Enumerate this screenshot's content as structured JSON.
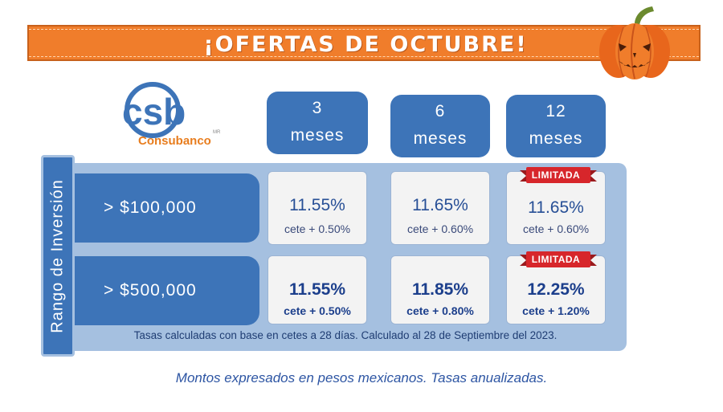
{
  "banner": {
    "title": "¡OFERTAS DE OCTUBRE!"
  },
  "logo": {
    "mark": "csb",
    "name": "Consubanco",
    "mr": "MR"
  },
  "terms": [
    {
      "num": "3",
      "unit": "meses"
    },
    {
      "num": "6",
      "unit": "meses"
    },
    {
      "num": "12",
      "unit": "meses"
    }
  ],
  "side_label": "Rango de Inversión",
  "rows": [
    {
      "label": "> $100,000",
      "cells": [
        {
          "rate": "11.55%",
          "sub": "cete + 0.50%"
        },
        {
          "rate": "11.65%",
          "sub": "cete + 0.60%"
        },
        {
          "rate": "11.65%",
          "sub": "cete + 0.60%",
          "badge": "LIMITADA"
        }
      ]
    },
    {
      "label": "> $500,000",
      "cells": [
        {
          "rate": "11.55%",
          "sub": "cete + 0.50%"
        },
        {
          "rate": "11.85%",
          "sub": "cete + 0.80%"
        },
        {
          "rate": "12.25%",
          "sub": "cete + 1.20%",
          "badge": "LIMITADA"
        }
      ]
    }
  ],
  "note": "Tasas calculadas con base en cetes a 28 días. Calculado al 28 de Septiembre del 2023.",
  "footer": "Montos expresados en pesos mexicanos. Tasas anualizadas.",
  "colors": {
    "orange": "#f07d2b",
    "blue": "#3d74b8",
    "light_blue": "#a5c0e0",
    "red_badge": "#d7262b"
  }
}
